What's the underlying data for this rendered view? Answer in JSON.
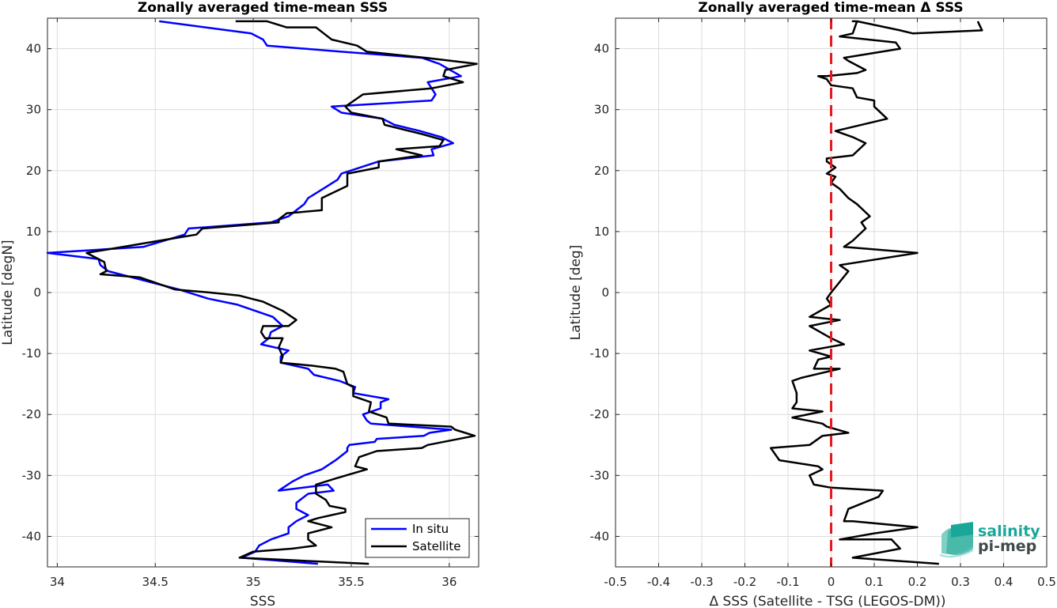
{
  "chart_data": [
    {
      "type": "line",
      "title": "Zonally averaged time-mean SSS",
      "xlabel": "SSS",
      "ylabel": "Latitude [degN]",
      "xlim": [
        33.95,
        36.15
      ],
      "ylim": [
        -45,
        45
      ],
      "xticks": [
        34,
        34.5,
        35,
        35.5,
        36
      ],
      "xtick_labels": [
        "34",
        "34.5",
        "35",
        "35.5",
        "36"
      ],
      "yticks": [
        -40,
        -30,
        -20,
        -10,
        0,
        10,
        20,
        30,
        40
      ],
      "ytick_labels": [
        "-40",
        "-30",
        "-20",
        "-10",
        "0",
        "10",
        "20",
        "30",
        "40"
      ],
      "grid": true,
      "legend_position": "bottom-right",
      "series": [
        {
          "name": "In situ",
          "color": "#0000ff",
          "x": [
            35.33,
            34.94,
            35.01,
            35.03,
            35.09,
            35.18,
            35.18,
            35.22,
            35.28,
            35.22,
            35.22,
            35.26,
            35.28,
            35.41,
            35.38,
            35.13,
            35.2,
            35.26,
            35.35,
            35.42,
            35.48,
            35.48,
            35.49,
            35.62,
            35.63,
            35.87,
            35.9,
            36.01,
            35.6,
            35.58,
            35.56,
            35.65,
            35.65,
            35.69,
            35.51,
            35.52,
            35.44,
            35.31,
            35.28,
            35.14,
            35.14,
            35.18,
            35.04,
            35.08,
            35.09,
            35.15,
            35.1,
            34.92,
            34.77,
            34.62,
            34.5,
            34.26,
            34.22,
            34.21,
            33.95,
            34.44,
            34.65,
            34.67,
            35.09,
            35.18,
            35.22,
            35.26,
            35.28,
            35.33,
            35.38,
            35.43,
            35.45,
            35.64,
            35.92,
            35.91,
            36.02,
            35.96,
            35.85,
            35.72,
            35.66,
            35.45,
            35.4,
            35.91,
            35.93,
            35.89,
            36.06,
            35.95,
            35.86,
            35.45,
            35.07,
            35.05,
            34.99,
            34.52
          ],
          "y": [
            -44.5,
            -43.5,
            -42.5,
            -41.5,
            -40.5,
            -39.5,
            -38.5,
            -37.5,
            -36.5,
            -35.5,
            -34.5,
            -33.5,
            -33.0,
            -32.5,
            -31.5,
            -32.5,
            -31.0,
            -30.0,
            -29.0,
            -27.5,
            -26.0,
            -25.5,
            -25.0,
            -24.5,
            -24.0,
            -23.5,
            -23.0,
            -22.5,
            -21.5,
            -21.0,
            -20.0,
            -19.0,
            -18.0,
            -17.5,
            -16.5,
            -15.5,
            -14.5,
            -13.5,
            -12.5,
            -11.5,
            -10.5,
            -9.5,
            -8.5,
            -7.5,
            -6.5,
            -5.5,
            -4.0,
            -2.0,
            -1.0,
            0.5,
            1.5,
            3.5,
            4.5,
            5.5,
            6.5,
            7.5,
            9.5,
            10.5,
            11.5,
            12.5,
            13.5,
            14.5,
            15.5,
            16.5,
            17.5,
            18.5,
            19.5,
            21.5,
            22.5,
            23.5,
            24.5,
            25.5,
            26.5,
            27.5,
            28.5,
            29.5,
            30.5,
            31.5,
            32.5,
            34.5,
            35.5,
            37.5,
            38.5,
            39.5,
            40.5,
            41.5,
            42.5,
            44.5
          ]
        },
        {
          "name": "Satellite",
          "color": "#000000",
          "x": [
            35.59,
            34.93,
            35.0,
            35.2,
            35.32,
            35.28,
            35.28,
            35.4,
            35.28,
            35.33,
            35.47,
            35.47,
            35.39,
            35.37,
            35.32,
            35.32,
            35.42,
            35.58,
            35.52,
            35.54,
            35.63,
            35.86,
            35.89,
            36.13,
            36.03,
            36.01,
            35.69,
            35.68,
            35.59,
            35.6,
            35.51,
            35.51,
            35.48,
            35.46,
            35.42,
            35.3,
            35.14,
            35.15,
            35.13,
            35.15,
            35.06,
            35.04,
            35.05,
            35.12,
            35.18,
            35.22,
            35.15,
            35.05,
            34.93,
            34.78,
            34.6,
            34.42,
            34.22,
            34.25,
            34.24,
            34.15,
            34.52,
            34.71,
            34.74,
            35.13,
            35.13,
            35.17,
            35.35,
            35.35,
            35.48,
            35.48,
            35.64,
            35.64,
            35.86,
            35.73,
            35.95,
            35.97,
            35.86,
            35.67,
            35.66,
            35.5,
            35.47,
            35.56,
            35.91,
            36.07,
            35.97,
            35.98,
            36.14,
            35.88,
            35.58,
            35.53,
            35.4,
            35.36,
            35.32,
            35.17,
            35.07,
            34.91
          ],
          "y": [
            -44.5,
            -43.5,
            -42.5,
            -42.0,
            -41.5,
            -40.5,
            -39.5,
            -38.5,
            -37.5,
            -37.0,
            -36.0,
            -35.5,
            -35.0,
            -34.0,
            -33.0,
            -31.5,
            -30.5,
            -29.0,
            -28.5,
            -27.0,
            -26.0,
            -25.5,
            -25.0,
            -23.5,
            -22.5,
            -22.0,
            -21.5,
            -20.5,
            -19.5,
            -18.0,
            -17.0,
            -15.5,
            -15.0,
            -13.0,
            -12.5,
            -12.0,
            -11.5,
            -10.5,
            -9.0,
            -7.5,
            -7.5,
            -6.5,
            -5.5,
            -5.5,
            -5.5,
            -4.5,
            -3.0,
            -1.5,
            -0.5,
            0.0,
            0.5,
            2.5,
            3.0,
            3.5,
            5.0,
            6.5,
            8.5,
            9.5,
            10.5,
            11.5,
            12.0,
            13.0,
            13.5,
            15.5,
            17.5,
            19.5,
            20.5,
            21.5,
            22.5,
            23.5,
            24.0,
            25.0,
            26.0,
            27.5,
            28.5,
            29.5,
            30.5,
            32.5,
            33.5,
            34.5,
            35.5,
            36.5,
            37.5,
            38.5,
            39.5,
            40.5,
            41.5,
            42.5,
            43.5,
            43.5,
            44.5,
            44.5
          ]
        }
      ]
    },
    {
      "type": "line",
      "title": "Zonally averaged time-mean Δ SSS",
      "xlabel": "Δ SSS (Satellite - TSG (LEGOS-DM))",
      "ylabel": "Latitude [deg]",
      "xlim": [
        -0.5,
        0.5
      ],
      "ylim": [
        -45,
        45
      ],
      "xticks": [
        -0.5,
        -0.4,
        -0.3,
        -0.2,
        -0.1,
        0,
        0.1,
        0.2,
        0.3,
        0.4,
        0.5
      ],
      "xtick_labels": [
        "-0.5",
        "-0.4",
        "-0.3",
        "-0.2",
        "-0.1",
        "0",
        "0.1",
        "0.2",
        "0.3",
        "0.4",
        "0.5"
      ],
      "yticks": [
        -40,
        -30,
        -20,
        -10,
        0,
        10,
        20,
        30,
        40
      ],
      "ytick_labels": [
        "-40",
        "-30",
        "-20",
        "-10",
        "0",
        "10",
        "20",
        "30",
        "40"
      ],
      "grid": true,
      "reference_line": {
        "x": 0,
        "color": "#e31a1c",
        "style": "dashed"
      },
      "series": [
        {
          "name": "",
          "color": "#000000",
          "x": [
            0.25,
            0.05,
            0.16,
            0.14,
            0.02,
            0.1,
            0.2,
            0.05,
            0.03,
            0.04,
            0.11,
            0.12,
            0.0,
            -0.04,
            -0.05,
            -0.02,
            -0.03,
            -0.12,
            -0.13,
            -0.14,
            -0.05,
            -0.02,
            0.04,
            -0.01,
            -0.02,
            -0.09,
            -0.02,
            -0.09,
            -0.08,
            -0.08,
            -0.09,
            -0.07,
            0.02,
            -0.04,
            -0.03,
            0.0,
            -0.05,
            0.03,
            0.0,
            -0.05,
            0.02,
            -0.05,
            0.0,
            -0.01,
            0.0,
            0.04,
            0.02,
            0.2,
            0.03,
            0.05,
            0.08,
            0.07,
            0.09,
            0.06,
            0.04,
            0.02,
            0.0,
            0.01,
            -0.01,
            0.01,
            -0.01,
            -0.01,
            0.05,
            0.08,
            0.05,
            0.01,
            0.13,
            0.1,
            0.1,
            0.06,
            0.05,
            0.0,
            -0.01,
            -0.03,
            -0.01,
            0.06,
            0.08,
            0.04,
            0.03,
            0.16,
            0.15,
            0.02,
            0.05,
            0.06,
            0.05,
            0.06,
            0.16,
            0.19,
            0.35,
            0.34
          ],
          "y": [
            -44.5,
            -43.5,
            -42.0,
            -40.5,
            -40.5,
            -39.5,
            -38.5,
            -37.5,
            -37.5,
            -35.5,
            -33.5,
            -32.5,
            -32.0,
            -31.5,
            -30.0,
            -29.0,
            -28.5,
            -27.5,
            -26.5,
            -25.5,
            -25.0,
            -23.5,
            -23.0,
            -22.0,
            -21.5,
            -20.5,
            -19.5,
            -19.0,
            -18.0,
            -16.5,
            -14.5,
            -14.0,
            -12.5,
            -12.5,
            -11.0,
            -10.5,
            -9.5,
            -8.5,
            -7.5,
            -5.5,
            -4.5,
            -4.0,
            -2.0,
            -1.0,
            0.0,
            3.5,
            4.5,
            6.5,
            7.5,
            8.5,
            10.5,
            11.5,
            12.5,
            14.5,
            15.5,
            17.0,
            18.0,
            19.0,
            19.5,
            20.5,
            21.5,
            22.0,
            22.5,
            24.5,
            25.5,
            26.5,
            28.5,
            30.5,
            31.5,
            32.0,
            33.5,
            34.0,
            35.0,
            35.5,
            35.5,
            36.0,
            36.5,
            38.0,
            38.5,
            40.0,
            41.0,
            42.0,
            42.5,
            44.5,
            44.5,
            44.5,
            43.0,
            42.5,
            43.0,
            44.5
          ]
        }
      ]
    }
  ],
  "logo": {
    "line1": "salinity",
    "line2": "pi-mep",
    "color1": "#1aa79a",
    "color2": "#3f4a4a"
  }
}
